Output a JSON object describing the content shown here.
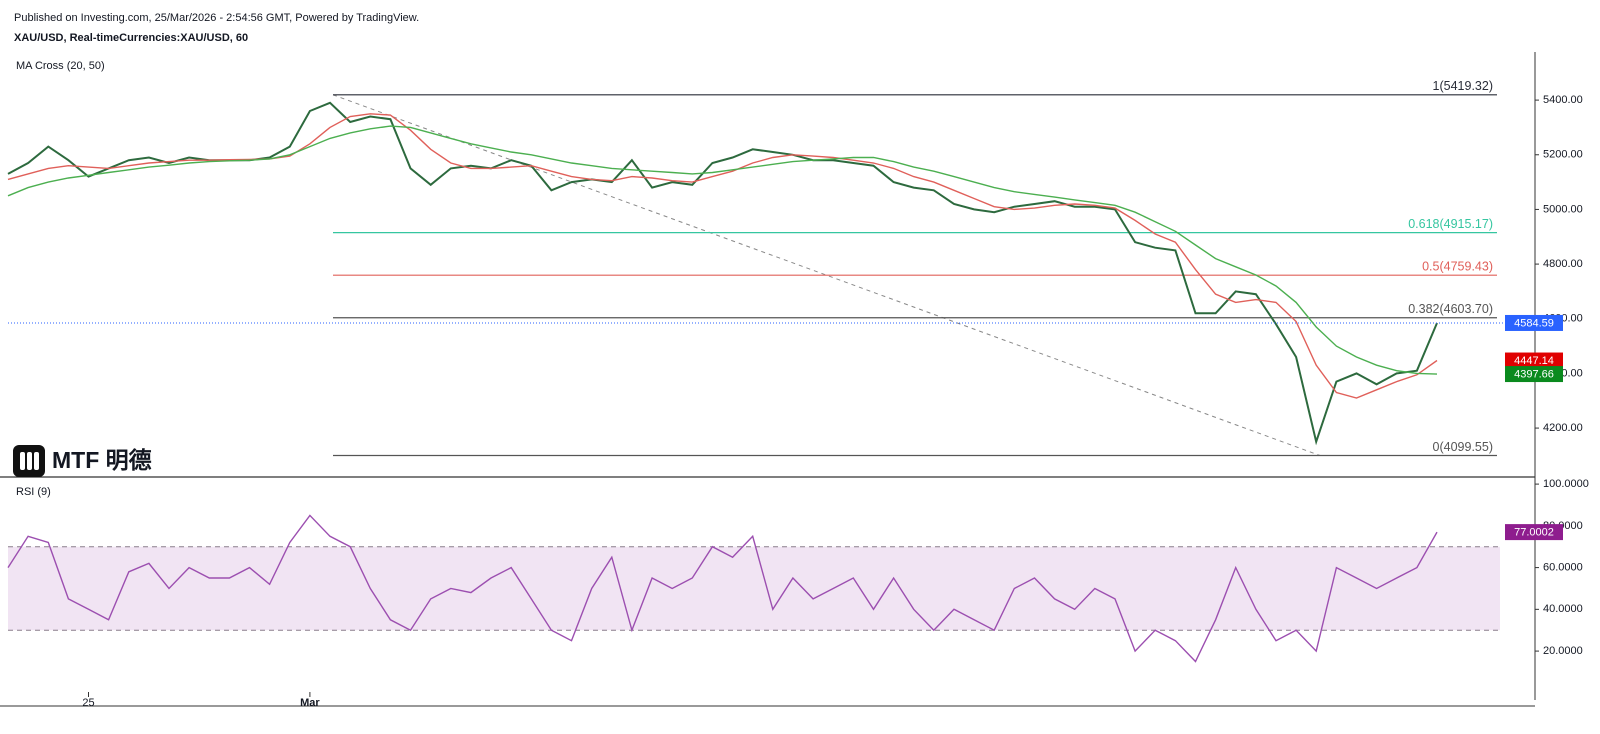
{
  "header": {
    "published": "Published on Investing.com, 25/Mar/2026 - 2:54:56 GMT, Powered by TradingView."
  },
  "logo": "MTF 明德",
  "chart_data": [
    {
      "type": "line",
      "title": "XAU/USD, Real-timeCurrencies:XAU/USD, 60",
      "indicator": "MA Cross (20, 50)",
      "ylim": [
        4021,
        5576
      ],
      "yticks": [
        {
          "value": 4200,
          "label": "4200.00"
        },
        {
          "value": 4400,
          "label": "4400.00"
        },
        {
          "value": 4600,
          "label": "4600.00"
        },
        {
          "value": 4800,
          "label": "4800.00"
        },
        {
          "value": 5000,
          "label": "5000.00"
        },
        {
          "value": 5200,
          "label": "5200.00"
        },
        {
          "value": 5400,
          "label": "5400.00"
        }
      ],
      "series": [
        {
          "color": "#2d6a3e",
          "label_color": "#2962ff",
          "last_value_label": "4584.59",
          "values": [
            5130,
            5170,
            5230,
            5180,
            5120,
            5150,
            5180,
            5190,
            5170,
            5190,
            5180,
            5180,
            5180,
            5190,
            5230,
            5360,
            5390,
            5320,
            5340,
            5330,
            5150,
            5090,
            5150,
            5160,
            5150,
            5180,
            5160,
            5070,
            5100,
            5110,
            5100,
            5180,
            5080,
            5100,
            5090,
            5170,
            5190,
            5220,
            5210,
            5200,
            5180,
            5180,
            5170,
            5160,
            5100,
            5080,
            5070,
            5020,
            5000,
            4990,
            5010,
            5020,
            5030,
            5010,
            5010,
            5000,
            4880,
            4860,
            4850,
            4620,
            4620,
            4700,
            4690,
            4580,
            4460,
            4150,
            4370,
            4400,
            4360,
            4400,
            4410,
            4584.59
          ]
        },
        {
          "color": "#e0605a",
          "label_color": "#e00000",
          "last_value_label": "4447.14",
          "values": [
            5110,
            5130,
            5150,
            5160,
            5155,
            5150,
            5160,
            5170,
            5175,
            5180,
            5180,
            5182,
            5183,
            5185,
            5195,
            5240,
            5300,
            5340,
            5350,
            5345,
            5290,
            5220,
            5170,
            5150,
            5150,
            5155,
            5160,
            5140,
            5120,
            5110,
            5105,
            5120,
            5115,
            5105,
            5100,
            5120,
            5140,
            5170,
            5190,
            5200,
            5195,
            5190,
            5180,
            5170,
            5150,
            5120,
            5100,
            5070,
            5040,
            5010,
            5000,
            5005,
            5015,
            5020,
            5015,
            5005,
            4960,
            4910,
            4880,
            4780,
            4690,
            4660,
            4670,
            4660,
            4590,
            4430,
            4330,
            4310,
            4340,
            4370,
            4395,
            4447.14
          ]
        },
        {
          "color": "#4caf50",
          "label_color": "#0a8a1e",
          "last_value_label": "4397.66",
          "values": [
            5050,
            5080,
            5100,
            5115,
            5125,
            5135,
            5145,
            5155,
            5162,
            5170,
            5175,
            5178,
            5180,
            5185,
            5200,
            5230,
            5260,
            5280,
            5295,
            5305,
            5300,
            5280,
            5260,
            5240,
            5225,
            5210,
            5200,
            5185,
            5170,
            5160,
            5150,
            5145,
            5140,
            5135,
            5130,
            5135,
            5145,
            5155,
            5165,
            5175,
            5180,
            5185,
            5190,
            5190,
            5175,
            5155,
            5140,
            5120,
            5100,
            5080,
            5065,
            5055,
            5045,
            5035,
            5025,
            5015,
            4990,
            4955,
            4920,
            4870,
            4820,
            4790,
            4760,
            4720,
            4660,
            4570,
            4500,
            4460,
            4430,
            4410,
            4400,
            4397.66
          ]
        }
      ],
      "fib_levels": [
        {
          "value": 5419.32,
          "label": "1(5419.32)",
          "color": "#2a2e39"
        },
        {
          "value": 4915.17,
          "label": "0.618(4915.17)",
          "color": "#35c6a0"
        },
        {
          "value": 4759.43,
          "label": "0.5(4759.43)",
          "color": "#e0605a"
        },
        {
          "value": 4603.7,
          "label": "0.382(4603.70)",
          "color": "#555"
        },
        {
          "value": 4099.55,
          "label": "0(4099.55)",
          "color": "#555"
        }
      ]
    },
    {
      "type": "line",
      "title": "RSI (9)",
      "categories": [
        null,
        null,
        null,
        null,
        "25",
        null,
        null,
        null,
        null,
        null,
        null,
        null,
        null,
        null,
        null,
        "Mar",
        null,
        null,
        null,
        null,
        null,
        null,
        null,
        null,
        null,
        null,
        null,
        null,
        null,
        null,
        null,
        null,
        null,
        null,
        null,
        null,
        null,
        null,
        null,
        null,
        null,
        null,
        null,
        null,
        null,
        null,
        null,
        null,
        null,
        null,
        null,
        null,
        null,
        null,
        null,
        null,
        null,
        null,
        null,
        null,
        null,
        null,
        null,
        null,
        null,
        null,
        null,
        null,
        null,
        null,
        null,
        null
      ],
      "ylim": [
        0.4,
        103.4
      ],
      "yticks": [
        {
          "value": 20,
          "label": "20.0000"
        },
        {
          "value": 40,
          "label": "40.0000"
        },
        {
          "value": 60,
          "label": "60.0000"
        },
        {
          "value": 80,
          "label": "80.0000"
        },
        {
          "value": 100,
          "label": "100.0000"
        }
      ],
      "bands": [
        30,
        70
      ],
      "band_color": "#f1e4f3",
      "series": [
        {
          "color": "#9c4fb0",
          "label_color": "#8e1d8e",
          "last_value_label": "77.0002",
          "values": [
            60,
            75,
            72,
            45,
            40,
            35,
            58,
            62,
            50,
            60,
            55,
            55,
            60,
            52,
            72,
            85,
            75,
            70,
            50,
            35,
            30,
            45,
            50,
            48,
            55,
            60,
            45,
            30,
            25,
            50,
            65,
            30,
            55,
            50,
            55,
            70,
            65,
            75,
            40,
            55,
            45,
            50,
            55,
            40,
            55,
            40,
            30,
            40,
            35,
            30,
            50,
            55,
            45,
            40,
            50,
            45,
            20,
            30,
            25,
            15,
            35,
            60,
            40,
            25,
            30,
            20,
            60,
            55,
            50,
            55,
            60,
            77.0002
          ]
        }
      ]
    }
  ]
}
